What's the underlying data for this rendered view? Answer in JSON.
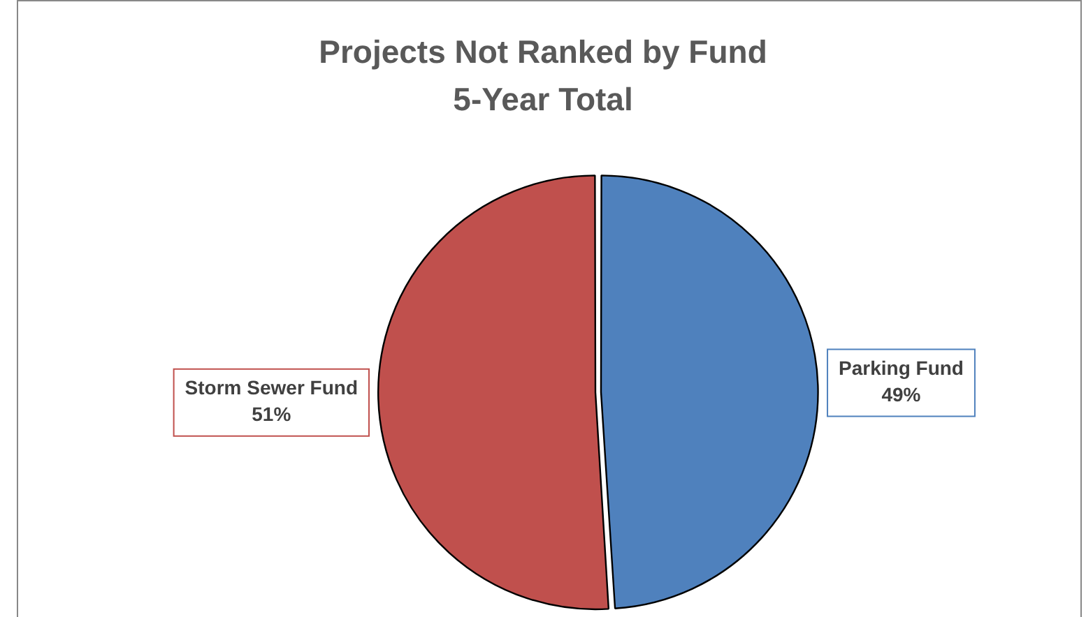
{
  "chart_data": {
    "type": "pie",
    "title": "Projects Not Ranked by Fund",
    "subtitle": "5-Year Total",
    "categories": [
      "Parking Fund",
      "Storm Sewer Fund"
    ],
    "values": [
      49,
      51
    ],
    "colors": [
      "#4f81bd",
      "#c0504d"
    ],
    "value_labels": [
      "49%",
      "51%"
    ]
  }
}
